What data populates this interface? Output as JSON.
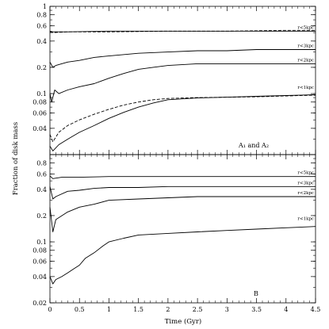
{
  "figure": {
    "ylabel": "Fraction of disk mass",
    "xlabel": "Time (Gyr)",
    "yticks": [
      {
        "v": 1,
        "label": "1"
      },
      {
        "v": 0.8,
        "label": "0.8"
      },
      {
        "v": 0.6,
        "label": "0.6"
      },
      {
        "v": 0.4,
        "label": "0.4"
      },
      {
        "v": 0.2,
        "label": "0.2"
      },
      {
        "v": 0.1,
        "label": "0.1"
      },
      {
        "v": 0.08,
        "label": "0.08"
      },
      {
        "v": 0.06,
        "label": "0.06"
      },
      {
        "v": 0.04,
        "label": "0.04"
      },
      {
        "v": 0.02,
        "label": "0.02"
      }
    ],
    "xticks": [
      {
        "v": 0,
        "label": "0"
      },
      {
        "v": 0.5,
        "label": "0.5"
      },
      {
        "v": 1,
        "label": "1"
      },
      {
        "v": 1.5,
        "label": "1.5"
      },
      {
        "v": 2,
        "label": "2"
      },
      {
        "v": 2.5,
        "label": "2.5"
      },
      {
        "v": 3,
        "label": "3"
      },
      {
        "v": 3.5,
        "label": "3.5"
      },
      {
        "v": 4,
        "label": "4"
      },
      {
        "v": 4.5,
        "label": "4.5"
      }
    ]
  },
  "chart_data": [
    {
      "type": "line",
      "panel_label": "A₁ and A₂",
      "xlim": [
        0,
        4.5
      ],
      "ylim": [
        0.02,
        1
      ],
      "yscale": "log",
      "series": [
        {
          "label": "r<5kpc",
          "style": "solid",
          "x": [
            0,
            0.05,
            0.3,
            1,
            2,
            3,
            4,
            4.5
          ],
          "y": [
            0.52,
            0.51,
            0.51,
            0.52,
            0.52,
            0.52,
            0.52,
            0.52
          ]
        },
        {
          "label": "",
          "style": "dashed",
          "x": [
            0,
            0.05,
            0.3,
            1,
            2,
            3,
            4,
            4.5
          ],
          "y": [
            0.51,
            0.5,
            0.51,
            0.51,
            0.52,
            0.52,
            0.53,
            0.53
          ]
        },
        {
          "label": "r<3kpc",
          "style": "solid",
          "x": [
            0,
            0.05,
            0.1,
            0.3,
            0.5,
            0.75,
            1,
            1.5,
            2,
            2.5,
            3,
            3.5,
            4,
            4.5
          ],
          "y": [
            0.23,
            0.2,
            0.21,
            0.23,
            0.24,
            0.26,
            0.27,
            0.29,
            0.3,
            0.31,
            0.31,
            0.32,
            0.32,
            0.32
          ]
        },
        {
          "label": "r<2kpc",
          "style": "solid",
          "x": [
            0,
            0.03,
            0.08,
            0.15,
            0.3,
            0.5,
            0.75,
            1,
            1.25,
            1.5,
            1.75,
            2,
            2.5,
            3,
            3.5,
            4,
            4.5
          ],
          "y": [
            0.1,
            0.08,
            0.11,
            0.1,
            0.11,
            0.12,
            0.13,
            0.15,
            0.17,
            0.19,
            0.2,
            0.21,
            0.22,
            0.22,
            0.22,
            0.22,
            0.22
          ]
        },
        {
          "label": "r<1kpc",
          "style": "dashed",
          "x": [
            0,
            0.05,
            0.15,
            0.3,
            0.5,
            0.75,
            1,
            1.25,
            1.5,
            1.75,
            2,
            2.5,
            3,
            3.5,
            4,
            4.5
          ],
          "y": [
            0.034,
            0.028,
            0.036,
            0.043,
            0.05,
            0.058,
            0.066,
            0.074,
            0.08,
            0.085,
            0.088,
            0.09,
            0.091,
            0.092,
            0.094,
            0.096
          ]
        },
        {
          "label": "",
          "style": "solid",
          "x": [
            0,
            0.05,
            0.15,
            0.3,
            0.5,
            0.75,
            1,
            1.25,
            1.5,
            1.75,
            2,
            2.5,
            3,
            3.5,
            4,
            4.5
          ],
          "y": [
            0.025,
            0.022,
            0.026,
            0.03,
            0.036,
            0.043,
            0.052,
            0.061,
            0.07,
            0.078,
            0.085,
            0.089,
            0.091,
            0.093,
            0.095,
            0.097
          ]
        }
      ]
    },
    {
      "type": "line",
      "panel_label": "B",
      "xlim": [
        0,
        4.5
      ],
      "ylim": [
        0.02,
        1
      ],
      "yscale": "log",
      "series": [
        {
          "label": "r<5kpc",
          "style": "solid",
          "x": [
            0,
            0.05,
            0.2,
            0.5,
            1,
            2,
            3,
            4,
            4.5
          ],
          "y": [
            0.57,
            0.53,
            0.55,
            0.55,
            0.56,
            0.56,
            0.56,
            0.56,
            0.56
          ]
        },
        {
          "label": "r<3kpc",
          "style": "solid",
          "x": [
            0,
            0.05,
            0.1,
            0.3,
            0.5,
            0.75,
            1,
            1.5,
            2,
            3,
            4,
            4.5
          ],
          "y": [
            0.43,
            0.31,
            0.33,
            0.38,
            0.39,
            0.41,
            0.42,
            0.42,
            0.43,
            0.43,
            0.43,
            0.43
          ]
        },
        {
          "label": "r<2kpc",
          "style": "solid",
          "x": [
            0,
            0.05,
            0.1,
            0.3,
            0.5,
            0.75,
            1,
            1.5,
            2,
            2.5,
            3,
            3.5,
            4,
            4.5
          ],
          "y": [
            0.25,
            0.13,
            0.18,
            0.22,
            0.25,
            0.27,
            0.3,
            0.31,
            0.32,
            0.33,
            0.33,
            0.33,
            0.33,
            0.33
          ]
        },
        {
          "label": "r<1kpc",
          "style": "solid",
          "x": [
            0,
            0.05,
            0.1,
            0.2,
            0.3,
            0.4,
            0.5,
            0.6,
            0.75,
            0.9,
            1,
            1.25,
            1.5,
            2,
            2.5,
            3,
            3.5,
            4,
            4.5
          ],
          "y": [
            0.04,
            0.033,
            0.037,
            0.04,
            0.044,
            0.049,
            0.054,
            0.065,
            0.075,
            0.09,
            0.1,
            0.11,
            0.12,
            0.125,
            0.13,
            0.135,
            0.14,
            0.145,
            0.15
          ]
        }
      ]
    }
  ]
}
